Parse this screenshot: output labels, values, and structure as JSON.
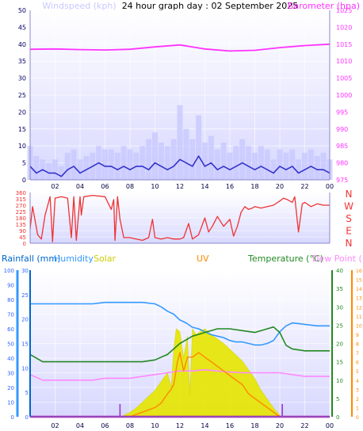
{
  "colors": {
    "windspeed": "#3333cc",
    "windgust": "#c8c8ff",
    "barometer": "#ff33ff",
    "direction": "#ee3333",
    "humidity": "#3399ff",
    "temperature": "#228822",
    "dewpoint": "#ff88ff",
    "solar": "#e6e600",
    "uv": "#ff8800",
    "rainfall": "#0066cc",
    "axis_blue": "#3366ff",
    "panel_bg": "#ffffff",
    "panel_fade": "#d8d8ff"
  },
  "chart_data": [
    {
      "type": "line",
      "title": "24 hour graph day : 02 September 2025",
      "x_ticks": [
        "02",
        "04",
        "06",
        "08",
        "10",
        "12",
        "14",
        "16",
        "18",
        "20",
        "22",
        "00"
      ],
      "series": [
        {
          "name": "Windspeed (kph)",
          "axis": "left",
          "ylim": [
            0,
            50
          ],
          "x": [
            0,
            0.5,
            1,
            1.5,
            2,
            2.5,
            3,
            3.5,
            4,
            4.5,
            5,
            5.5,
            6,
            6.5,
            7,
            7.5,
            8,
            8.5,
            9,
            9.5,
            10,
            10.5,
            11,
            11.5,
            12,
            12.5,
            13,
            13.5,
            14,
            14.5,
            15,
            15.5,
            16,
            16.5,
            17,
            17.5,
            18,
            18.5,
            19,
            19.5,
            20,
            20.5,
            21,
            21.5,
            22,
            22.5,
            23,
            23.5,
            24
          ],
          "y": [
            4,
            2,
            3,
            2,
            2,
            1,
            3,
            4,
            2,
            3,
            4,
            5,
            4,
            4,
            3,
            4,
            3,
            4,
            4,
            3,
            5,
            4,
            3,
            4,
            6,
            5,
            4,
            7,
            4,
            5,
            3,
            4,
            3,
            4,
            5,
            4,
            3,
            4,
            3,
            2,
            4,
            3,
            4,
            2,
            3,
            4,
            3,
            3,
            2
          ]
        },
        {
          "name": "Wind Gust",
          "axis": "left",
          "ylim": [
            0,
            50
          ],
          "x": [
            0,
            0.5,
            1,
            1.5,
            2,
            2.5,
            3,
            3.5,
            4,
            4.5,
            5,
            5.5,
            6,
            6.5,
            7,
            7.5,
            8,
            8.5,
            9,
            9.5,
            10,
            10.5,
            11,
            11.5,
            12,
            12.5,
            13,
            13.5,
            14,
            14.5,
            15,
            15.5,
            16,
            16.5,
            17,
            17.5,
            18,
            18.5,
            19,
            19.5,
            20,
            20.5,
            21,
            21.5,
            22,
            22.5,
            23,
            23.5,
            24
          ],
          "y": [
            10,
            7,
            6,
            5,
            6,
            4,
            8,
            9,
            6,
            7,
            8,
            10,
            9,
            9,
            8,
            10,
            9,
            8,
            10,
            12,
            14,
            11,
            10,
            12,
            22,
            15,
            12,
            19,
            11,
            13,
            9,
            11,
            8,
            10,
            12,
            10,
            8,
            10,
            9,
            6,
            9,
            8,
            9,
            6,
            8,
            9,
            7,
            8,
            6
          ]
        },
        {
          "name": "Barometer (hpa)",
          "axis": "right",
          "ylim": [
            975,
            1025
          ],
          "x": [
            0,
            2,
            4,
            6,
            8,
            10,
            12,
            14,
            16,
            18,
            20,
            22,
            24
          ],
          "y": [
            1013.5,
            1013.6,
            1013.4,
            1013.3,
            1013.5,
            1014.2,
            1014.8,
            1013.6,
            1013.0,
            1013.2,
            1014.0,
            1014.6,
            1015.0
          ]
        }
      ],
      "y_ticks_left": [
        0,
        5,
        10,
        15,
        20,
        25,
        30,
        35,
        40,
        45,
        50
      ],
      "y_ticks_right": [
        975,
        980,
        985,
        990,
        995,
        1000,
        1005,
        1010,
        1015,
        1020,
        1025
      ]
    },
    {
      "type": "line",
      "series": [
        {
          "name": "Wind Direction",
          "ylim": [
            0,
            360
          ],
          "x": [
            0,
            0.2,
            0.6,
            0.9,
            1.2,
            1.6,
            1.8,
            2.0,
            2.5,
            3.0,
            3.3,
            3.5,
            3.7,
            4.0,
            4.1,
            4.3,
            5.0,
            6.0,
            6.5,
            6.7,
            6.8,
            7.0,
            7.2,
            7.5,
            8.0,
            8.5,
            9.0,
            9.5,
            9.8,
            10.0,
            10.5,
            11.0,
            11.5,
            12.0,
            12.3,
            12.7,
            13.0,
            13.5,
            14.0,
            14.3,
            14.6,
            15.0,
            15.5,
            16.0,
            16.3,
            16.6,
            16.9,
            17.2,
            17.5,
            17.8,
            18.0,
            18.5,
            19.0,
            19.5,
            20.0,
            20.3,
            20.6,
            21.0,
            21.2,
            21.5,
            21.8,
            22.0,
            22.5,
            23.0,
            23.5,
            24.0
          ],
          "y": [
            100,
            260,
            60,
            30,
            200,
            330,
            10,
            320,
            330,
            320,
            40,
            330,
            20,
            330,
            200,
            330,
            340,
            330,
            240,
            310,
            20,
            330,
            170,
            40,
            40,
            30,
            20,
            40,
            170,
            40,
            30,
            40,
            30,
            30,
            40,
            140,
            30,
            60,
            180,
            80,
            120,
            190,
            120,
            170,
            50,
            120,
            220,
            260,
            240,
            250,
            260,
            250,
            260,
            270,
            300,
            320,
            310,
            290,
            330,
            80,
            280,
            290,
            260,
            280,
            270,
            270
          ]
        }
      ],
      "y_ticks": [
        0,
        45,
        90,
        135,
        180,
        225,
        270,
        315,
        360
      ],
      "compass": [
        "N",
        "W",
        "S",
        "E",
        "N"
      ]
    },
    {
      "type": "line",
      "x_ticks": [
        "02",
        "04",
        "06",
        "08",
        "10",
        "12",
        "14",
        "16",
        "18",
        "20",
        "22",
        "00"
      ],
      "legend": [
        "Rainfall (mm)",
        "Humidity",
        "Solar",
        "UV",
        "Temperature (°C)",
        "Dew Point (°C)"
      ],
      "series": [
        {
          "name": "Humidity",
          "axis": "humidity",
          "ylim": [
            0,
            100
          ],
          "x": [
            0,
            2,
            4,
            5,
            6,
            7,
            8,
            9,
            10,
            10.5,
            11,
            11.5,
            12,
            12.5,
            13,
            13.5,
            14,
            14.5,
            15,
            15.5,
            16,
            16.5,
            17,
            17.5,
            18,
            18.5,
            19,
            19.5,
            20,
            20.5,
            21,
            22,
            23,
            24
          ],
          "y": [
            77,
            77,
            77,
            77,
            78,
            78,
            78,
            78,
            77,
            75,
            72,
            70,
            66,
            64,
            61,
            60,
            58,
            56,
            55,
            54,
            52,
            51,
            51,
            50,
            49,
            49,
            50,
            52,
            58,
            62,
            64,
            63,
            62,
            62
          ]
        },
        {
          "name": "Temperature (°C)",
          "axis": "temperature",
          "ylim": [
            0,
            40
          ],
          "x": [
            0,
            1,
            2,
            3,
            4,
            5,
            6,
            7,
            8,
            9,
            10,
            11,
            12,
            13,
            14,
            15,
            16,
            17,
            18,
            19,
            19.5,
            20,
            20.5,
            21,
            22,
            23,
            24
          ],
          "y": [
            17,
            15,
            15,
            15,
            15,
            15,
            15,
            15,
            15,
            15,
            15.5,
            17,
            20,
            22,
            23,
            24,
            24,
            23.5,
            23,
            24,
            24.5,
            23,
            19.5,
            18.5,
            18,
            18,
            18
          ]
        },
        {
          "name": "Dew Point (°C)",
          "axis": "temperature",
          "ylim": [
            0,
            40
          ],
          "x": [
            0,
            1,
            2,
            3,
            4,
            5,
            6,
            7,
            8,
            9,
            10,
            11,
            12,
            13,
            14,
            15,
            16,
            17,
            18,
            19,
            20,
            21,
            22,
            23,
            24
          ],
          "y": [
            11.5,
            10,
            10,
            10,
            10,
            10,
            10.5,
            10.5,
            10.5,
            11,
            11.5,
            12,
            12.5,
            12.5,
            12.8,
            12.5,
            12.2,
            12,
            12,
            12,
            12,
            11.5,
            11,
            11,
            11
          ]
        },
        {
          "name": "Solar",
          "axis": "humidity",
          "ylim": [
            0,
            100
          ],
          "type": "area",
          "x": [
            7.5,
            8,
            8.5,
            9,
            9.5,
            10,
            10.5,
            11,
            11.3,
            11.5,
            11.7,
            12,
            12.3,
            12.6,
            12.8,
            13,
            13.3,
            13.6,
            14,
            14.5,
            15,
            15.5,
            16,
            16.5,
            17,
            17.5,
            18,
            18.5,
            19,
            19.5,
            20
          ],
          "y": [
            1,
            3,
            6,
            10,
            14,
            18,
            24,
            30,
            20,
            45,
            60,
            58,
            40,
            55,
            15,
            60,
            56,
            58,
            60,
            56,
            53,
            50,
            46,
            42,
            38,
            32,
            26,
            18,
            12,
            6,
            1
          ]
        },
        {
          "name": "UV",
          "axis": "uv",
          "ylim": [
            0,
            16
          ],
          "x": [
            8,
            9,
            10,
            10.5,
            11,
            11.3,
            11.5,
            11.8,
            12,
            12.3,
            12.6,
            13,
            13.5,
            14,
            14.5,
            15,
            15.5,
            16,
            16.5,
            17,
            17.5,
            18,
            18.5,
            19,
            19.5,
            20
          ],
          "y": [
            0,
            0.5,
            1,
            1.5,
            2.5,
            3,
            3.5,
            6,
            7,
            5,
            6.5,
            6.5,
            7,
            6.5,
            6,
            5.5,
            5,
            4.5,
            4,
            3.5,
            2.5,
            2,
            1.5,
            1,
            0.5,
            0
          ]
        },
        {
          "name": "Rainfall (mm)",
          "axis": "rain",
          "ylim": [
            0,
            30
          ],
          "x": [
            0,
            24
          ],
          "y": [
            0,
            0
          ]
        }
      ],
      "y_ticks_humidity": [
        0,
        10,
        20,
        30,
        40,
        50,
        60,
        70,
        80,
        90,
        100
      ],
      "y_ticks_rain": [
        0,
        5,
        10,
        15,
        20,
        25,
        30
      ],
      "y_ticks_temperature": [
        0,
        5,
        10,
        15,
        20,
        25,
        30,
        35,
        40
      ],
      "y_ticks_uv": [
        0,
        1,
        2,
        3,
        4,
        5,
        6,
        7,
        8,
        9,
        10,
        11,
        12,
        13,
        14,
        15,
        16
      ],
      "markers_x": [
        7.2,
        20.2
      ]
    }
  ]
}
